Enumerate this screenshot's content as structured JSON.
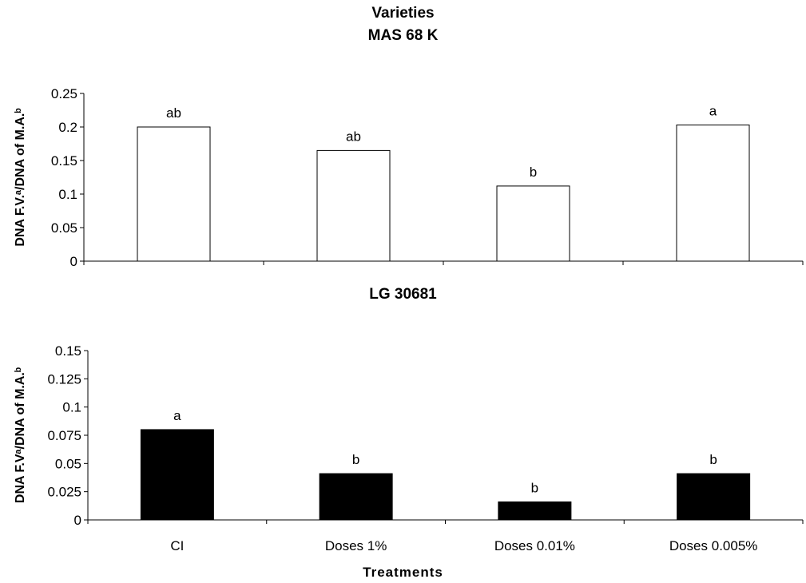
{
  "title_line1": "Varieties",
  "title_line2": "MAS 68 K",
  "x_axis_label": "Treatments",
  "chart_data": [
    {
      "type": "bar",
      "title": "MAS 68 K",
      "categories": [
        "CI",
        "Doses 1%",
        "Doses 0.01%",
        "Doses 0.005%"
      ],
      "values": [
        0.2,
        0.165,
        0.112,
        0.203
      ],
      "data_labels": [
        "ab",
        "ab",
        "b",
        "a"
      ],
      "bar_color": "#ffffff",
      "ylabel": "DNA F.V.ᵃ/DNA of M.A.ᵇ",
      "ylim": [
        0,
        0.25
      ],
      "yticks": [
        0,
        0.05,
        0.1,
        0.15,
        0.2,
        0.25
      ],
      "ytick_labels": [
        "0",
        "0.05",
        "0.1",
        "0.15",
        "0.2",
        "0.25"
      ],
      "show_category_labels": false,
      "grid": false
    },
    {
      "type": "bar",
      "title": "LG 30681",
      "categories": [
        "CI",
        "Doses 1%",
        "Doses 0.01%",
        "Doses 0.005%"
      ],
      "values": [
        0.08,
        0.041,
        0.016,
        0.041
      ],
      "data_labels": [
        "a",
        "b",
        "b",
        "b"
      ],
      "bar_color": "#000000",
      "ylabel": "DNA F.Vᵃ/DNA of M.A.ᵇ",
      "ylim": [
        0,
        0.15
      ],
      "yticks": [
        0,
        0.025,
        0.05,
        0.075,
        0.1,
        0.125,
        0.15
      ],
      "ytick_labels": [
        "0",
        "0.025",
        "0.05",
        "0.075",
        "0.1",
        "0.125",
        "0.15"
      ],
      "show_category_labels": true,
      "grid": false
    }
  ]
}
